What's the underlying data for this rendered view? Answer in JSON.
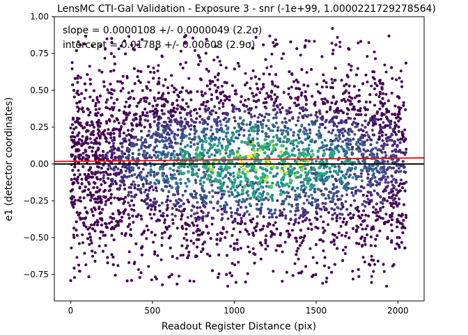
{
  "chart_data": {
    "type": "scatter",
    "title": "LensMC CTI-Gal Validation - Exposure 3 - snr (-1e+99, 1.0000221729278564)",
    "xlabel": "Readout Register Distance (pix)",
    "ylabel": "e1 (detector coordinates)",
    "xlim": [
      -100,
      2160
    ],
    "ylim": [
      -0.93,
      1.0
    ],
    "xticks": [
      0,
      500,
      1000,
      1500,
      2000
    ],
    "xtick_labels": [
      "0",
      "500",
      "1000",
      "1500",
      "2000"
    ],
    "yticks": [
      -0.75,
      -0.5,
      -0.25,
      0.0,
      0.25,
      0.5,
      0.75,
      1.0
    ],
    "ytick_labels": [
      "−0.75",
      "−0.50",
      "−0.25",
      "0.00",
      "0.25",
      "0.50",
      "0.75",
      "1.00"
    ],
    "grid": false,
    "colormap": "viridis",
    "annotations": [
      "slope = 0.0000108 +/- 0.0000049 (2.2σ)",
      "intercept = 0.01788 +/- 0.00608 (2.9σ)"
    ],
    "fit_line": {
      "slope": 1.08e-05,
      "intercept": 0.01788,
      "color": "#ff0000"
    },
    "zero_line": {
      "y": 0.0,
      "color": "#000000"
    },
    "points": {
      "x_range": [
        0,
        2050
      ],
      "y_range": [
        -0.83,
        0.92
      ],
      "approx_count": 6000,
      "representative": [
        {
          "x": 30,
          "y": 0.05
        },
        {
          "x": 560,
          "y": -0.82
        },
        {
          "x": 960,
          "y": -0.83
        },
        {
          "x": 1600,
          "y": 0.92
        },
        {
          "x": 1630,
          "y": 0.86
        },
        {
          "x": 1540,
          "y": -0.81
        },
        {
          "x": 1930,
          "y": -0.83
        },
        {
          "x": 1100,
          "y": 0.15
        },
        {
          "x": 2050,
          "y": 0.1
        }
      ]
    }
  }
}
